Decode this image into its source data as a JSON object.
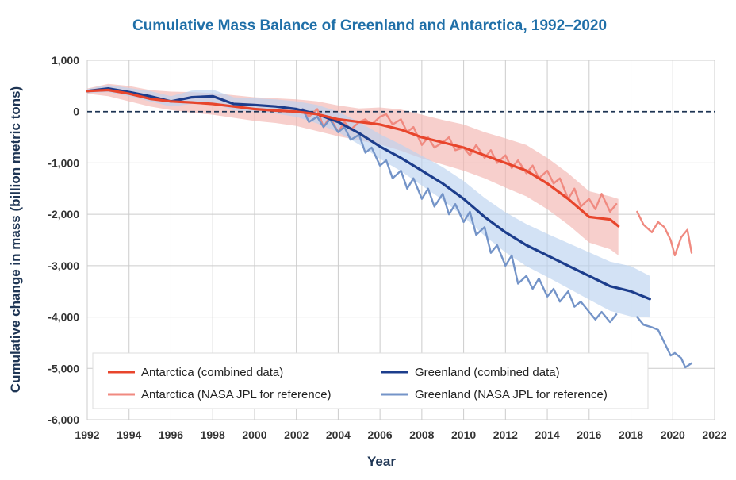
{
  "chart_data": {
    "type": "line",
    "title": "Cumulative Mass Balance of Greenland and Antarctica, 1992–2020",
    "xlabel": "Year",
    "ylabel": "Cumulative change in mass (billion metric tons)",
    "xlim": [
      1992,
      2022
    ],
    "ylim": [
      -6000,
      1000
    ],
    "x_ticks": [
      1992,
      1994,
      1996,
      1998,
      2000,
      2002,
      2004,
      2006,
      2008,
      2010,
      2012,
      2014,
      2016,
      2018,
      2020,
      2022
    ],
    "x_tick_labels": [
      "1992",
      "1994",
      "1996",
      "1998",
      "2000",
      "2002",
      "2004",
      "2006",
      "2008",
      "2010",
      "2012",
      "2014",
      "2016",
      "2018",
      "2020",
      "2022"
    ],
    "y_ticks": [
      1000,
      0,
      -1000,
      -2000,
      -3000,
      -4000,
      -5000,
      -6000
    ],
    "y_tick_labels": [
      "1,000",
      "0",
      "-1,000",
      "-2,000",
      "-3,000",
      "-4,000",
      "-5,000",
      "-6,000"
    ],
    "grid": "both",
    "zero_line": "dashed",
    "legend_position": "bottom-left",
    "series": [
      {
        "name": "Antarctica (combined data)",
        "color": "#e8452c",
        "x": [
          1992,
          1993,
          1994,
          1995,
          1996,
          1997,
          1998,
          1999,
          2000,
          2001,
          2002,
          2003,
          2004,
          2005,
          2006,
          2007,
          2008,
          2009,
          2010,
          2011,
          2012,
          2013,
          2014,
          2015,
          2016,
          2017,
          2017.4
        ],
        "y": [
          400,
          420,
          350,
          250,
          200,
          180,
          150,
          100,
          50,
          20,
          0,
          -50,
          -150,
          -200,
          -250,
          -350,
          -500,
          -600,
          -700,
          -850,
          -1000,
          -1150,
          -1400,
          -1700,
          -2050,
          -2100,
          -2230
        ],
        "band_lower": [
          350,
          300,
          200,
          100,
          30,
          -20,
          -60,
          -120,
          -180,
          -220,
          -280,
          -380,
          -480,
          -560,
          -640,
          -760,
          -910,
          -1030,
          -1150,
          -1300,
          -1480,
          -1650,
          -1900,
          -2200,
          -2550,
          -2680,
          -2800
        ],
        "band_upper": [
          450,
          540,
          500,
          420,
          390,
          380,
          360,
          320,
          280,
          260,
          240,
          200,
          120,
          60,
          80,
          40,
          -60,
          -160,
          -250,
          -400,
          -520,
          -650,
          -900,
          -1200,
          -1550,
          -1650,
          -1700
        ]
      },
      {
        "name": "Antarctica (NASA JPL for reference)",
        "color": "#f08a80",
        "segments": [
          {
            "x": [
              2002.3,
              2002.6,
              2003,
              2003.3,
              2003.6,
              2004,
              2004.3,
              2004.6,
              2005,
              2005.3,
              2005.6,
              2006,
              2006.3,
              2006.6,
              2007,
              2007.3,
              2007.6,
              2008,
              2008.3,
              2008.6,
              2009,
              2009.3,
              2009.6,
              2010,
              2010.3,
              2010.6,
              2011,
              2011.3,
              2011.6,
              2012,
              2012.3,
              2012.6,
              2013,
              2013.3,
              2013.6,
              2014,
              2014.3,
              2014.6,
              2015,
              2015.3,
              2015.6,
              2016,
              2016.3,
              2016.6,
              2017,
              2017.3
            ],
            "y": [
              50,
              -100,
              50,
              -300,
              -100,
              -400,
              -200,
              -350,
              -200,
              -150,
              -250,
              -100,
              -50,
              -250,
              -150,
              -400,
              -300,
              -650,
              -500,
              -700,
              -600,
              -500,
              -750,
              -700,
              -850,
              -650,
              -900,
              -750,
              -1000,
              -850,
              -1100,
              -950,
              -1200,
              -1050,
              -1300,
              -1150,
              -1400,
              -1300,
              -1700,
              -1500,
              -1850,
              -1700,
              -1900,
              -1600,
              -1950,
              -1800
            ]
          },
          {
            "x": [
              2018.3,
              2018.6,
              2019,
              2019.3,
              2019.6,
              2019.9,
              2020.1,
              2020.4,
              2020.7,
              2020.9
            ],
            "y": [
              -1950,
              -2200,
              -2350,
              -2150,
              -2250,
              -2500,
              -2800,
              -2450,
              -2300,
              -2750
            ]
          }
        ]
      },
      {
        "name": "Greenland (combined data)",
        "color": "#1c3d8c",
        "x": [
          1992,
          1993,
          1994,
          1995,
          1996,
          1997,
          1998,
          1999,
          2000,
          2001,
          2002,
          2003,
          2004,
          2005,
          2006,
          2007,
          2008,
          2009,
          2010,
          2011,
          2012,
          2013,
          2014,
          2015,
          2016,
          2017,
          2018,
          2018.9
        ],
        "y": [
          400,
          450,
          380,
          300,
          200,
          280,
          300,
          150,
          130,
          100,
          50,
          -50,
          -200,
          -420,
          -680,
          -900,
          -1150,
          -1400,
          -1700,
          -2050,
          -2350,
          -2600,
          -2800,
          -3000,
          -3200,
          -3400,
          -3500,
          -3650
        ],
        "band_lower": [
          360,
          380,
          300,
          200,
          100,
          150,
          170,
          20,
          0,
          -40,
          -100,
          -230,
          -400,
          -640,
          -920,
          -1160,
          -1440,
          -1720,
          -2050,
          -2420,
          -2740,
          -3010,
          -3220,
          -3440,
          -3660,
          -3880,
          -3990,
          -4010
        ],
        "band_upper": [
          440,
          520,
          460,
          400,
          300,
          410,
          430,
          280,
          260,
          240,
          200,
          130,
          0,
          -200,
          -440,
          -640,
          -860,
          -1080,
          -1350,
          -1680,
          -1960,
          -2190,
          -2380,
          -2560,
          -2740,
          -2920,
          -3010,
          -3200
        ]
      },
      {
        "name": "Greenland (NASA JPL for reference)",
        "color": "#7494c8",
        "segments": [
          {
            "x": [
              2002.3,
              2002.6,
              2003,
              2003.3,
              2003.6,
              2004,
              2004.3,
              2004.6,
              2005,
              2005.3,
              2005.6,
              2006,
              2006.3,
              2006.6,
              2007,
              2007.3,
              2007.6,
              2008,
              2008.3,
              2008.6,
              2009,
              2009.3,
              2009.6,
              2010,
              2010.3,
              2010.6,
              2011,
              2011.3,
              2011.6,
              2012,
              2012.3,
              2012.6,
              2013,
              2013.3,
              2013.6,
              2014,
              2014.3,
              2014.6,
              2015,
              2015.3,
              2015.6,
              2016,
              2016.3,
              2016.6,
              2017,
              2017.3
            ],
            "y": [
              50,
              -200,
              -100,
              -300,
              -150,
              -400,
              -300,
              -550,
              -450,
              -800,
              -700,
              -1050,
              -950,
              -1300,
              -1150,
              -1500,
              -1300,
              -1700,
              -1500,
              -1850,
              -1600,
              -2000,
              -1800,
              -2150,
              -1950,
              -2400,
              -2250,
              -2750,
              -2600,
              -3000,
              -2800,
              -3350,
              -3200,
              -3450,
              -3250,
              -3600,
              -3450,
              -3700,
              -3500,
              -3800,
              -3700,
              -3900,
              -4050,
              -3900,
              -4100,
              -3950
            ]
          },
          {
            "x": [
              2018.3,
              2018.6,
              2019,
              2019.3,
              2019.6,
              2019.9,
              2020.1,
              2020.4,
              2020.6,
              2020.9
            ],
            "y": [
              -4000,
              -4150,
              -4200,
              -4250,
              -4500,
              -4750,
              -4700,
              -4800,
              -4980,
              -4900
            ]
          }
        ]
      }
    ]
  }
}
